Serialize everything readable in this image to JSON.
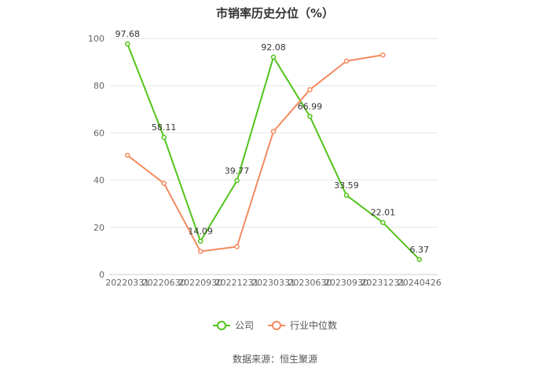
{
  "chart_data": {
    "type": "line",
    "title": "市销率历史分位（%）",
    "categories": [
      "20220331",
      "20220630",
      "20220930",
      "20221231",
      "20230331",
      "20230630",
      "20230930",
      "20231231",
      "20240426"
    ],
    "series": [
      {
        "name": "公司",
        "color": "#52c41a",
        "values": [
          97.68,
          58.11,
          14.09,
          39.77,
          92.08,
          66.99,
          33.59,
          22.01,
          6.37
        ],
        "labels": [
          "97.68",
          "58.11",
          "14.09",
          "39.77",
          "92.08",
          "66.99",
          "33.59",
          "22.01",
          "6.37"
        ]
      },
      {
        "name": "行业中位数",
        "color": "#f4895f",
        "values": [
          50.5,
          38.6,
          9.8,
          11.8,
          60.6,
          78.3,
          90.4,
          93.0,
          null
        ]
      }
    ],
    "yticks": [
      "0",
      "20",
      "40",
      "60",
      "80",
      "100"
    ],
    "ylim": [
      0,
      100
    ],
    "grid": true,
    "legend_position": "bottom"
  },
  "source": "数据来源：恒生聚源"
}
